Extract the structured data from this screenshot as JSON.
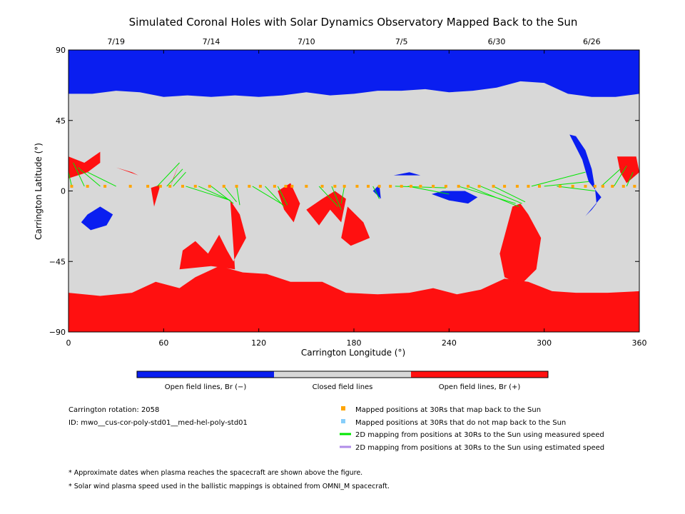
{
  "chart_data": {
    "type": "heatmap",
    "title": "Simulated Coronal Holes with Solar Dynamics Observatory Mapped Back to the Sun",
    "xlabel": "Carrington Longitude (°)",
    "ylabel": "Carrington Latitude (°)",
    "xlim": [
      0,
      360
    ],
    "ylim": [
      -90,
      90
    ],
    "x_ticks": [
      0,
      60,
      120,
      180,
      240,
      300,
      360
    ],
    "y_ticks": [
      90,
      45,
      0,
      -45,
      -90
    ],
    "date_ticks": [
      {
        "label": "7/19",
        "lon": 30
      },
      {
        "label": "7/14",
        "lon": 90
      },
      {
        "label": "7/10",
        "lon": 150
      },
      {
        "label": "7/5",
        "lon": 210
      },
      {
        "label": "6/30",
        "lon": 270
      },
      {
        "label": "6/26",
        "lon": 330
      }
    ],
    "colorbar": [
      {
        "label": "Open field lines, Br (−)",
        "color": "#0a1ef0"
      },
      {
        "label": "Closed field lines",
        "color": "#d8d8d8"
      },
      {
        "label": "Open field lines, Br (+)",
        "color": "#ff1010"
      }
    ],
    "regions": {
      "north_polar_open_negative": [
        [
          0,
          90
        ],
        [
          0,
          62
        ],
        [
          15,
          62
        ],
        [
          30,
          64
        ],
        [
          45,
          63
        ],
        [
          60,
          60
        ],
        [
          75,
          61
        ],
        [
          90,
          60
        ],
        [
          105,
          61
        ],
        [
          120,
          60
        ],
        [
          135,
          61
        ],
        [
          150,
          63
        ],
        [
          165,
          61
        ],
        [
          180,
          62
        ],
        [
          195,
          64
        ],
        [
          210,
          64
        ],
        [
          225,
          65
        ],
        [
          240,
          63
        ],
        [
          255,
          64
        ],
        [
          270,
          66
        ],
        [
          285,
          70
        ],
        [
          300,
          69
        ],
        [
          315,
          62
        ],
        [
          330,
          60
        ],
        [
          345,
          60
        ],
        [
          360,
          62
        ],
        [
          360,
          90
        ]
      ],
      "south_polar_open_positive": [
        [
          0,
          -90
        ],
        [
          0,
          -65
        ],
        [
          20,
          -67
        ],
        [
          40,
          -65
        ],
        [
          55,
          -58
        ],
        [
          70,
          -62
        ],
        [
          80,
          -55
        ],
        [
          95,
          -48
        ],
        [
          110,
          -52
        ],
        [
          125,
          -53
        ],
        [
          140,
          -58
        ],
        [
          160,
          -58
        ],
        [
          175,
          -65
        ],
        [
          195,
          -66
        ],
        [
          215,
          -65
        ],
        [
          230,
          -62
        ],
        [
          245,
          -66
        ],
        [
          260,
          -63
        ],
        [
          275,
          -56
        ],
        [
          290,
          -58
        ],
        [
          305,
          -64
        ],
        [
          320,
          -65
        ],
        [
          340,
          -65
        ],
        [
          360,
          -64
        ],
        [
          360,
          -90
        ]
      ],
      "patches_positive": [
        [
          [
            0,
            22
          ],
          [
            10,
            18
          ],
          [
            20,
            25
          ],
          [
            20,
            18
          ],
          [
            12,
            12
          ],
          [
            0,
            8
          ]
        ],
        [
          [
            52,
            2
          ],
          [
            58,
            4
          ],
          [
            54,
            -10
          ]
        ],
        [
          [
            70,
            18
          ],
          [
            66,
            8
          ],
          [
            64,
            2
          ]
        ],
        [
          [
            30,
            15
          ],
          [
            44,
            10
          ],
          [
            40,
            12
          ]
        ],
        [
          [
            132,
            0
          ],
          [
            140,
            5
          ],
          [
            146,
            -8
          ],
          [
            142,
            -20
          ],
          [
            136,
            -12
          ]
        ],
        [
          [
            102,
            -6
          ],
          [
            108,
            -15
          ],
          [
            112,
            -30
          ],
          [
            104,
            -45
          ],
          [
            100,
            -38
          ],
          [
            95,
            -28
          ],
          [
            88,
            -40
          ],
          [
            80,
            -32
          ],
          [
            72,
            -38
          ],
          [
            70,
            -50
          ],
          [
            90,
            -48
          ],
          [
            105,
            -50
          ]
        ],
        [
          [
            150,
            -12
          ],
          [
            158,
            -22
          ],
          [
            165,
            -12
          ],
          [
            172,
            -20
          ],
          [
            175,
            -5
          ],
          [
            168,
            0
          ],
          [
            160,
            -5
          ]
        ],
        [
          [
            176,
            -10
          ],
          [
            186,
            -20
          ],
          [
            190,
            -30
          ],
          [
            178,
            -35
          ],
          [
            172,
            -30
          ]
        ],
        [
          [
            280,
            -10
          ],
          [
            285,
            -8
          ],
          [
            290,
            -15
          ],
          [
            298,
            -30
          ],
          [
            295,
            -50
          ],
          [
            285,
            -60
          ],
          [
            275,
            -55
          ],
          [
            272,
            -40
          ],
          [
            276,
            -25
          ]
        ],
        [
          [
            346,
            22
          ],
          [
            358,
            22
          ],
          [
            360,
            12
          ],
          [
            352,
            5
          ],
          [
            348,
            12
          ]
        ]
      ],
      "patches_negative": [
        [
          [
            12,
            -15
          ],
          [
            20,
            -10
          ],
          [
            28,
            -15
          ],
          [
            24,
            -22
          ],
          [
            14,
            -25
          ],
          [
            8,
            -20
          ]
        ],
        [
          [
            229,
            -2
          ],
          [
            240,
            -6
          ],
          [
            252,
            -8
          ],
          [
            258,
            -4
          ],
          [
            250,
            0
          ],
          [
            236,
            0
          ]
        ],
        [
          [
            320,
            35
          ],
          [
            326,
            26
          ],
          [
            330,
            14
          ],
          [
            332,
            2
          ],
          [
            333,
            -8
          ],
          [
            330,
            -12
          ],
          [
            326,
            -16
          ],
          [
            336,
            -4
          ],
          [
            328,
            6
          ],
          [
            324,
            20
          ],
          [
            316,
            36
          ]
        ],
        [
          [
            192,
            0
          ],
          [
            197,
            -5
          ],
          [
            196,
            4
          ]
        ],
        [
          [
            205,
            10
          ],
          [
            215,
            12
          ],
          [
            222,
            10
          ]
        ]
      ]
    },
    "mapped_positions_lon": [
      2,
      12,
      23,
      39,
      50,
      58,
      64,
      72,
      80,
      89,
      98,
      106,
      114,
      121,
      130,
      137,
      141,
      150,
      160,
      168,
      174,
      182,
      189,
      196,
      203,
      210,
      216,
      222,
      230,
      238,
      246,
      252,
      259,
      268,
      275,
      283,
      290,
      297,
      310,
      318,
      326,
      332,
      337,
      343,
      350,
      357
    ],
    "mapped_positions_lat": 3,
    "mapping_lines_measured_speed": [
      [
        2,
        3,
        0,
        12
      ],
      [
        10,
        3,
        3,
        18
      ],
      [
        20,
        3,
        6,
        15
      ],
      [
        30,
        3,
        12,
        12
      ],
      [
        56,
        3,
        70,
        18
      ],
      [
        62,
        3,
        72,
        14
      ],
      [
        66,
        3,
        74,
        12
      ],
      [
        74,
        3,
        102,
        -6
      ],
      [
        82,
        3,
        102,
        -6
      ],
      [
        90,
        3,
        104,
        -8
      ],
      [
        98,
        3,
        106,
        -7
      ],
      [
        106,
        3,
        108,
        -9
      ],
      [
        116,
        3,
        134,
        -8
      ],
      [
        124,
        3,
        136,
        -10
      ],
      [
        132,
        3,
        138,
        -9
      ],
      [
        158,
        3,
        170,
        -10
      ],
      [
        166,
        3,
        172,
        -12
      ],
      [
        174,
        3,
        172,
        -8
      ],
      [
        192,
        3,
        196,
        -5
      ],
      [
        206,
        3,
        238,
        2
      ],
      [
        214,
        3,
        240,
        -2
      ],
      [
        246,
        3,
        282,
        -8
      ],
      [
        252,
        3,
        284,
        -10
      ],
      [
        260,
        3,
        286,
        -8
      ],
      [
        268,
        3,
        288,
        -7
      ],
      [
        292,
        3,
        326,
        12
      ],
      [
        300,
        3,
        328,
        6
      ],
      [
        308,
        3,
        332,
        0
      ],
      [
        336,
        3,
        348,
        14
      ],
      [
        344,
        3,
        352,
        16
      ],
      [
        352,
        3,
        356,
        12
      ]
    ],
    "mapping_lines_estimated_speed": []
  },
  "legend": {
    "orange_label": "Mapped positions at 30Rs that map back to the Sun",
    "lightblue_label": "Mapped positions at 30Rs that do not map back to the Sun",
    "green_label": "2D mapping from positions at 30Rs to the Sun using measured speed",
    "purple_label": "2D mapping from positions at 30Rs to the Sun using estimated speed",
    "orange_color": "#ffa500",
    "lightblue_color": "#87cefa",
    "green_color": "#00e600",
    "purple_color": "#b08ce8"
  },
  "info": {
    "rotation": "Carrington rotation: 2058",
    "id": "ID: mwo__cus-cor-poly-std01__med-hel-poly-std01"
  },
  "notes": [
    "* Approximate dates when plasma reaches the spacecraft are shown above the figure.",
    "* Solar wind plasma speed used in the ballistic mappings is obtained from OMNI_M spacecraft."
  ],
  "colors": {
    "closed": "#d8d8d8",
    "negative": "#0a1ef0",
    "positive": "#ff1010"
  }
}
